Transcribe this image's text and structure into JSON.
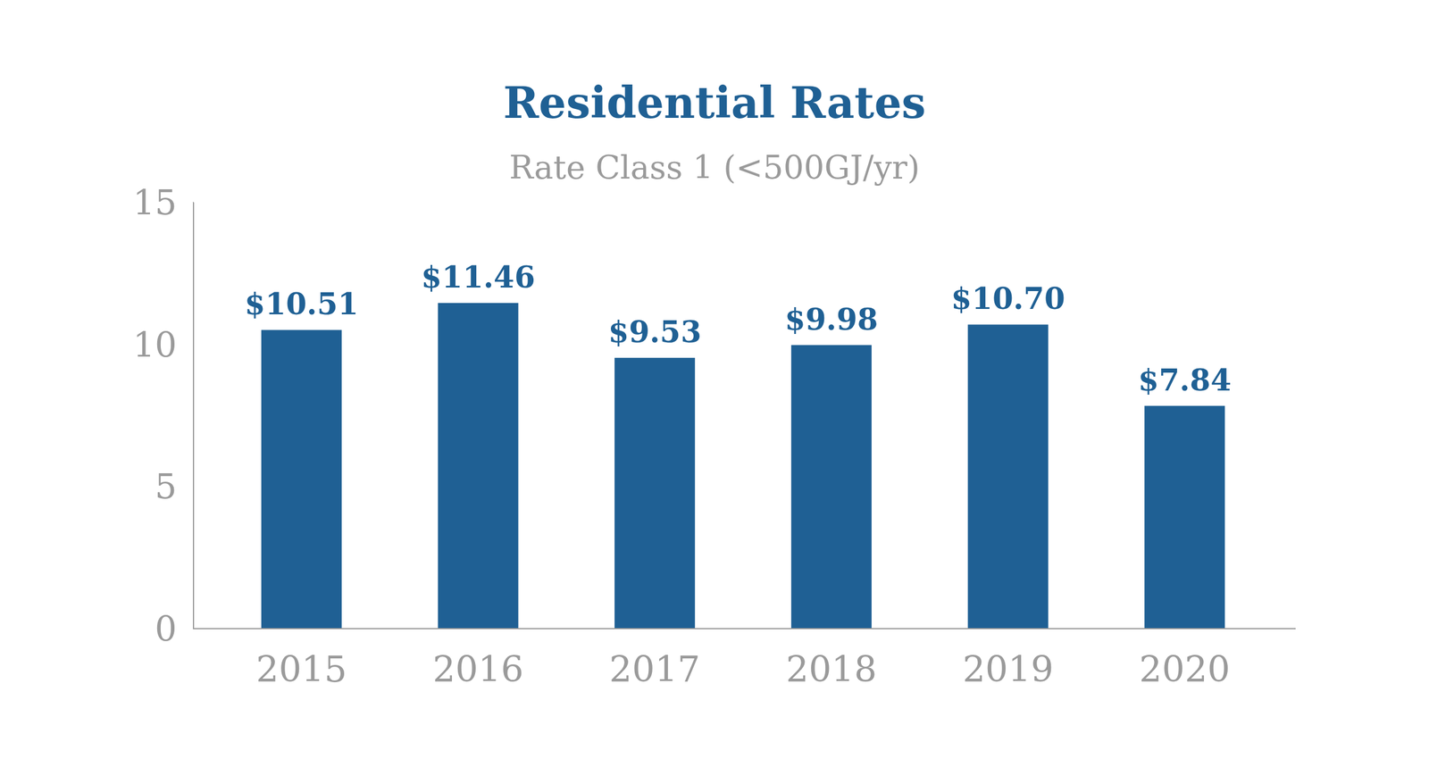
{
  "chart_data": {
    "type": "bar",
    "title": "Residential Rates",
    "subtitle": "Rate Class 1 (<500GJ/yr)",
    "categories": [
      "2015",
      "2016",
      "2017",
      "2018",
      "2019",
      "2020"
    ],
    "values": [
      10.51,
      11.46,
      9.53,
      9.98,
      10.7,
      7.84
    ],
    "value_labels": [
      "$10.51",
      "$11.46",
      "$9.53",
      "$9.98",
      "$10.70",
      "$7.84"
    ],
    "color": "#1f6094",
    "ylim": [
      0,
      15
    ],
    "yticks": [
      0,
      5,
      10,
      15
    ],
    "grid": false,
    "data_labels": true
  }
}
